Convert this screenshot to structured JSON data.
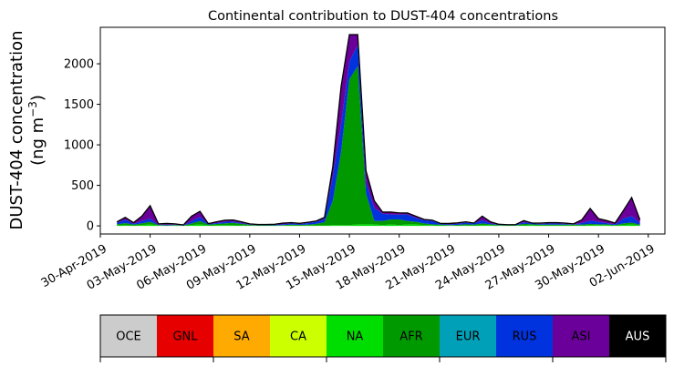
{
  "chart_data": {
    "type": "area",
    "stacked": true,
    "title": "Continental contribution to DUST-404 concentrations",
    "ylabel_line1": "DUST-404 concentration",
    "ylabel_line2": "(ng m",
    "ylabel_sup": "−3",
    "ylabel_close": ")",
    "xlim": [
      "2019-04-30",
      "2019-06-03"
    ],
    "ylim": [
      -100,
      2450
    ],
    "yticks": [
      0,
      500,
      1000,
      1500,
      2000
    ],
    "xtick_labels": [
      "30-Apr-2019",
      "03-May-2019",
      "06-May-2019",
      "09-May-2019",
      "12-May-2019",
      "15-May-2019",
      "18-May-2019",
      "21-May-2019",
      "24-May-2019",
      "27-May-2019",
      "30-May-2019",
      "02-Jun-2019"
    ],
    "xtick_dates": [
      "2019-04-30",
      "2019-05-03",
      "2019-05-06",
      "2019-05-09",
      "2019-05-12",
      "2019-05-15",
      "2019-05-18",
      "2019-05-21",
      "2019-05-24",
      "2019-05-27",
      "2019-05-30",
      "2019-06-02"
    ],
    "x": [
      "2019-05-01",
      "2019-05-01 12:00",
      "2019-05-02",
      "2019-05-02 12:00",
      "2019-05-03",
      "2019-05-03 12:00",
      "2019-05-04",
      "2019-05-04 12:00",
      "2019-05-05",
      "2019-05-05 12:00",
      "2019-05-06",
      "2019-05-06 12:00",
      "2019-05-07",
      "2019-05-07 12:00",
      "2019-05-08",
      "2019-05-08 12:00",
      "2019-05-09",
      "2019-05-09 12:00",
      "2019-05-10",
      "2019-05-10 12:00",
      "2019-05-11",
      "2019-05-11 12:00",
      "2019-05-12",
      "2019-05-12 12:00",
      "2019-05-13",
      "2019-05-13 12:00",
      "2019-05-14",
      "2019-05-14 12:00",
      "2019-05-15",
      "2019-05-15 12:00",
      "2019-05-16",
      "2019-05-16 12:00",
      "2019-05-17",
      "2019-05-17 12:00",
      "2019-05-18",
      "2019-05-18 12:00",
      "2019-05-19",
      "2019-05-19 12:00",
      "2019-05-20",
      "2019-05-20 12:00",
      "2019-05-21",
      "2019-05-21 12:00",
      "2019-05-22",
      "2019-05-22 12:00",
      "2019-05-23",
      "2019-05-23 12:00",
      "2019-05-24",
      "2019-05-24 12:00",
      "2019-05-25",
      "2019-05-25 12:00",
      "2019-05-26",
      "2019-05-26 12:00",
      "2019-05-27",
      "2019-05-27 12:00",
      "2019-05-28",
      "2019-05-28 12:00",
      "2019-05-29",
      "2019-05-29 12:00",
      "2019-05-30",
      "2019-05-30 12:00",
      "2019-05-31",
      "2019-05-31 12:00",
      "2019-06-01",
      "2019-06-01 12:00"
    ],
    "series": [
      {
        "name": "OCE",
        "color": "#cccccc",
        "values": [
          0,
          0,
          0,
          0,
          0,
          0,
          0,
          0,
          0,
          0,
          0,
          0,
          0,
          0,
          0,
          0,
          0,
          0,
          0,
          0,
          0,
          0,
          0,
          0,
          0,
          0,
          0,
          0,
          0,
          0,
          0,
          0,
          0,
          0,
          0,
          0,
          0,
          0,
          0,
          0,
          0,
          0,
          0,
          0,
          0,
          0,
          0,
          0,
          0,
          0,
          0,
          0,
          0,
          0,
          0,
          0,
          0,
          0,
          0,
          0,
          0,
          0,
          0,
          0
        ]
      },
      {
        "name": "GNL",
        "color": "#e60000",
        "values": [
          0,
          0,
          0,
          0,
          0,
          0,
          0,
          0,
          0,
          0,
          0,
          0,
          0,
          0,
          0,
          0,
          0,
          0,
          0,
          0,
          0,
          0,
          0,
          0,
          0,
          0,
          0,
          0,
          0,
          0,
          0,
          0,
          0,
          0,
          0,
          0,
          0,
          0,
          0,
          0,
          0,
          0,
          0,
          0,
          0,
          0,
          0,
          0,
          0,
          0,
          0,
          0,
          0,
          0,
          0,
          0,
          0,
          0,
          0,
          0,
          0,
          0,
          0,
          0
        ]
      },
      {
        "name": "SA",
        "color": "#ffaa00",
        "values": [
          0,
          0,
          0,
          0,
          0,
          0,
          0,
          0,
          0,
          0,
          0,
          0,
          0,
          0,
          0,
          0,
          0,
          0,
          0,
          0,
          0,
          0,
          0,
          0,
          0,
          0,
          0,
          0,
          0,
          0,
          0,
          0,
          0,
          0,
          0,
          0,
          0,
          0,
          0,
          0,
          0,
          0,
          0,
          0,
          0,
          0,
          0,
          0,
          0,
          0,
          0,
          0,
          0,
          0,
          0,
          0,
          0,
          0,
          0,
          0,
          0,
          0,
          0,
          0
        ]
      },
      {
        "name": "CA",
        "color": "#ccff00",
        "values": [
          0,
          0,
          0,
          0,
          0,
          0,
          0,
          0,
          0,
          0,
          0,
          0,
          0,
          0,
          0,
          0,
          0,
          0,
          0,
          0,
          0,
          0,
          0,
          0,
          0,
          0,
          0,
          0,
          0,
          0,
          0,
          0,
          0,
          0,
          0,
          0,
          0,
          0,
          0,
          0,
          0,
          0,
          0,
          0,
          0,
          0,
          0,
          0,
          0,
          0,
          0,
          0,
          0,
          0,
          0,
          0,
          0,
          0,
          0,
          0,
          0,
          0,
          0,
          0
        ]
      },
      {
        "name": "NA",
        "color": "#00dd00",
        "values": [
          5,
          10,
          5,
          10,
          20,
          5,
          2,
          5,
          2,
          10,
          20,
          5,
          8,
          10,
          8,
          5,
          2,
          2,
          2,
          2,
          5,
          5,
          2,
          5,
          5,
          5,
          10,
          10,
          10,
          20,
          20,
          20,
          10,
          20,
          10,
          20,
          20,
          10,
          10,
          5,
          5,
          2,
          5,
          5,
          10,
          10,
          5,
          2,
          2,
          5,
          10,
          5,
          5,
          5,
          5,
          5,
          5,
          10,
          10,
          10,
          5,
          10,
          20,
          5
        ]
      },
      {
        "name": "AFR",
        "color": "#009900",
        "values": [
          15,
          25,
          10,
          20,
          30,
          5,
          5,
          5,
          2,
          20,
          40,
          10,
          15,
          20,
          30,
          20,
          10,
          5,
          5,
          5,
          5,
          10,
          10,
          10,
          20,
          40,
          300,
          900,
          1800,
          1950,
          380,
          40,
          50,
          60,
          70,
          40,
          30,
          20,
          10,
          10,
          5,
          10,
          15,
          10,
          20,
          10,
          5,
          5,
          5,
          20,
          10,
          10,
          10,
          10,
          10,
          10,
          10,
          15,
          10,
          10,
          5,
          20,
          20,
          10
        ]
      },
      {
        "name": "EUR",
        "color": "#00a0b8",
        "values": [
          0,
          0,
          0,
          0,
          0,
          0,
          0,
          0,
          0,
          0,
          0,
          0,
          0,
          0,
          0,
          0,
          0,
          0,
          0,
          0,
          0,
          0,
          0,
          0,
          0,
          0,
          0,
          0,
          0,
          0,
          0,
          0,
          0,
          0,
          0,
          0,
          0,
          0,
          0,
          0,
          0,
          0,
          0,
          0,
          0,
          0,
          0,
          0,
          0,
          0,
          0,
          0,
          0,
          0,
          0,
          0,
          0,
          0,
          0,
          0,
          0,
          0,
          0,
          0
        ]
      },
      {
        "name": "RUS",
        "color": "#0033dd",
        "values": [
          20,
          40,
          10,
          30,
          40,
          5,
          8,
          5,
          3,
          30,
          50,
          8,
          12,
          20,
          15,
          10,
          5,
          5,
          5,
          8,
          10,
          15,
          10,
          20,
          25,
          40,
          300,
          350,
          220,
          260,
          140,
          160,
          90,
          60,
          60,
          80,
          50,
          40,
          40,
          10,
          10,
          15,
          20,
          15,
          40,
          10,
          5,
          5,
          5,
          20,
          10,
          10,
          15,
          15,
          10,
          5,
          20,
          40,
          30,
          15,
          10,
          60,
          80,
          20
        ]
      },
      {
        "name": "ASI",
        "color": "#6a0099",
        "values": [
          10,
          30,
          15,
          60,
          160,
          10,
          15,
          10,
          5,
          60,
          70,
          5,
          15,
          20,
          20,
          15,
          8,
          5,
          5,
          5,
          15,
          10,
          10,
          10,
          10,
          20,
          120,
          460,
          330,
          130,
          140,
          90,
          20,
          30,
          20,
          20,
          20,
          10,
          10,
          5,
          10,
          10,
          10,
          5,
          50,
          20,
          5,
          3,
          3,
          20,
          5,
          10,
          10,
          10,
          10,
          5,
          40,
          150,
          40,
          30,
          15,
          100,
          230,
          40
        ]
      },
      {
        "name": "AUS",
        "color": "#000000",
        "values": [
          0,
          0,
          0,
          0,
          0,
          0,
          0,
          0,
          0,
          0,
          0,
          0,
          0,
          0,
          0,
          0,
          0,
          0,
          0,
          0,
          0,
          0,
          0,
          0,
          0,
          0,
          0,
          0,
          0,
          0,
          0,
          0,
          0,
          0,
          0,
          0,
          0,
          0,
          0,
          0,
          0,
          0,
          0,
          0,
          0,
          0,
          0,
          0,
          0,
          0,
          0,
          0,
          0,
          0,
          0,
          0,
          0,
          0,
          0,
          0,
          0,
          0,
          0,
          0
        ]
      }
    ],
    "legend": [
      {
        "label": "OCE",
        "color": "#cccccc",
        "text_color": "#000000"
      },
      {
        "label": "GNL",
        "color": "#e60000",
        "text_color": "#000000"
      },
      {
        "label": "SA",
        "color": "#ffaa00",
        "text_color": "#000000"
      },
      {
        "label": "CA",
        "color": "#ccff00",
        "text_color": "#000000"
      },
      {
        "label": "NA",
        "color": "#00dd00",
        "text_color": "#000000"
      },
      {
        "label": "AFR",
        "color": "#009900",
        "text_color": "#000000"
      },
      {
        "label": "EUR",
        "color": "#00a0b8",
        "text_color": "#000000"
      },
      {
        "label": "RUS",
        "color": "#0033dd",
        "text_color": "#000000"
      },
      {
        "label": "ASI",
        "color": "#6a0099",
        "text_color": "#000000"
      },
      {
        "label": "AUS",
        "color": "#000000",
        "text_color": "#ffffff"
      }
    ],
    "legend_placement": "bottom"
  }
}
